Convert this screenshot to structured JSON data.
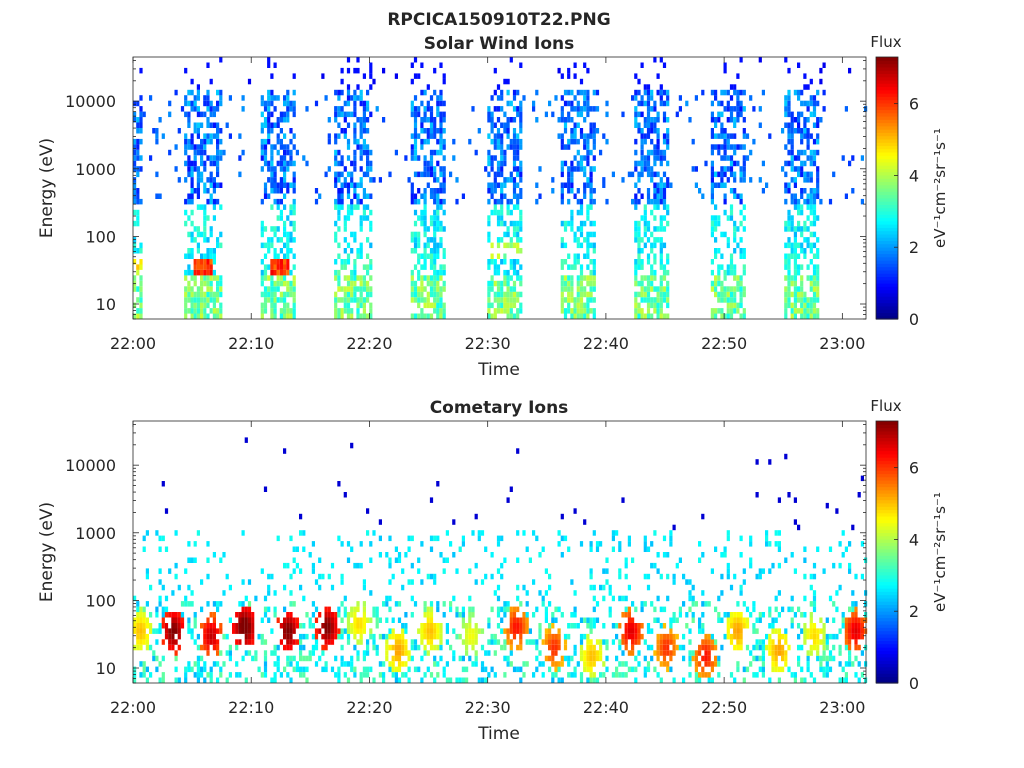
{
  "figure_title": "RPCICA150910T22.PNG",
  "chart_data": [
    {
      "type": "heatmap",
      "title": "Solar Wind Ions",
      "xlabel": "Time",
      "ylabel": "Energy (eV)",
      "x_ticks": [
        "22:00",
        "22:10",
        "22:20",
        "22:30",
        "22:40",
        "22:50",
        "23:00"
      ],
      "xlim": [
        "22:00",
        "23:02"
      ],
      "y_scale": "log",
      "y_ticks": [
        10,
        100,
        1000,
        10000
      ],
      "ylim": [
        6,
        45000
      ],
      "colorbar": {
        "label": "Flux",
        "units": "eV⁻¹cm⁻²sr⁻¹s⁻¹",
        "ticks": [
          0,
          2,
          4,
          6
        ],
        "range": [
          0,
          7.3
        ],
        "colormap": "jet"
      },
      "sweeps": [
        {
          "start": "22:00",
          "end": "22:00.8",
          "peak": {
            "energy": 40,
            "flux": 5.0
          }
        },
        {
          "start": "22:04.3",
          "end": "22:07.3",
          "peak": {
            "energy": 35,
            "flux": 6.5
          }
        },
        {
          "start": "22:10.7",
          "end": "22:13.7",
          "peak": {
            "energy": 35,
            "flux": 6.5
          }
        },
        {
          "start": "22:17",
          "end": "22:20",
          "peak": {
            "energy": 40,
            "flux": 3.5
          }
        },
        {
          "start": "22:23.3",
          "end": "22:26.3",
          "peak": {
            "energy": 40,
            "flux": 3.3
          }
        },
        {
          "start": "22:29.7",
          "end": "22:32.7",
          "peak": {
            "energy": 60,
            "flux": 4.3
          }
        },
        {
          "start": "22:36",
          "end": "22:39",
          "peak": {
            "energy": 40,
            "flux": 3.3
          }
        },
        {
          "start": "22:42.3",
          "end": "22:45.3",
          "peak": {
            "energy": 40,
            "flux": 3.3
          }
        },
        {
          "start": "22:48.7",
          "end": "22:51.7",
          "peak": {
            "energy": 40,
            "flux": 3.3
          }
        },
        {
          "start": "22:55",
          "end": "22:58",
          "peak": {
            "energy": 40,
            "flux": 3.3
          }
        }
      ]
    },
    {
      "type": "heatmap",
      "title": "Cometary Ions",
      "xlabel": "Time",
      "ylabel": "Energy (eV)",
      "x_ticks": [
        "22:00",
        "22:10",
        "22:20",
        "22:30",
        "22:40",
        "22:50",
        "23:00"
      ],
      "xlim": [
        "22:00",
        "23:02"
      ],
      "y_scale": "log",
      "y_ticks": [
        10,
        100,
        1000,
        10000
      ],
      "ylim": [
        6,
        45000
      ],
      "colorbar": {
        "label": "Flux",
        "units": "eV⁻¹cm⁻²sr⁻¹s⁻¹",
        "ticks": [
          0,
          2,
          4,
          6
        ],
        "range": [
          0,
          7.3
        ],
        "colormap": "jet"
      },
      "bursts": [
        {
          "time": "22:00.5",
          "energy": 35,
          "flux": 4.8
        },
        {
          "time": "22:03.3",
          "energy": 35,
          "flux": 7.0
        },
        {
          "time": "22:06.5",
          "energy": 30,
          "flux": 6.5
        },
        {
          "time": "22:09.3",
          "energy": 40,
          "flux": 7.2
        },
        {
          "time": "22:13",
          "energy": 35,
          "flux": 7.0
        },
        {
          "time": "22:16.3",
          "energy": 40,
          "flux": 7.0
        },
        {
          "time": "22:19",
          "energy": 45,
          "flux": 4.6
        },
        {
          "time": "22:22.3",
          "energy": 18,
          "flux": 5.0
        },
        {
          "time": "22:25",
          "energy": 35,
          "flux": 4.8
        },
        {
          "time": "22:28.5",
          "energy": 30,
          "flux": 4.3
        },
        {
          "time": "22:32.3",
          "energy": 40,
          "flux": 6.0
        },
        {
          "time": "22:35.5",
          "energy": 20,
          "flux": 5.8
        },
        {
          "time": "22:38.7",
          "energy": 15,
          "flux": 4.8
        },
        {
          "time": "22:42",
          "energy": 35,
          "flux": 6.3
        },
        {
          "time": "22:45",
          "energy": 20,
          "flux": 5.8
        },
        {
          "time": "22:48.3",
          "energy": 15,
          "flux": 6.0
        },
        {
          "time": "22:51",
          "energy": 35,
          "flux": 5.0
        },
        {
          "time": "22:54.5",
          "energy": 18,
          "flux": 5.0
        },
        {
          "time": "22:57.5",
          "energy": 30,
          "flux": 4.6
        },
        {
          "time": "23:01",
          "energy": 35,
          "flux": 6.3
        }
      ]
    }
  ]
}
